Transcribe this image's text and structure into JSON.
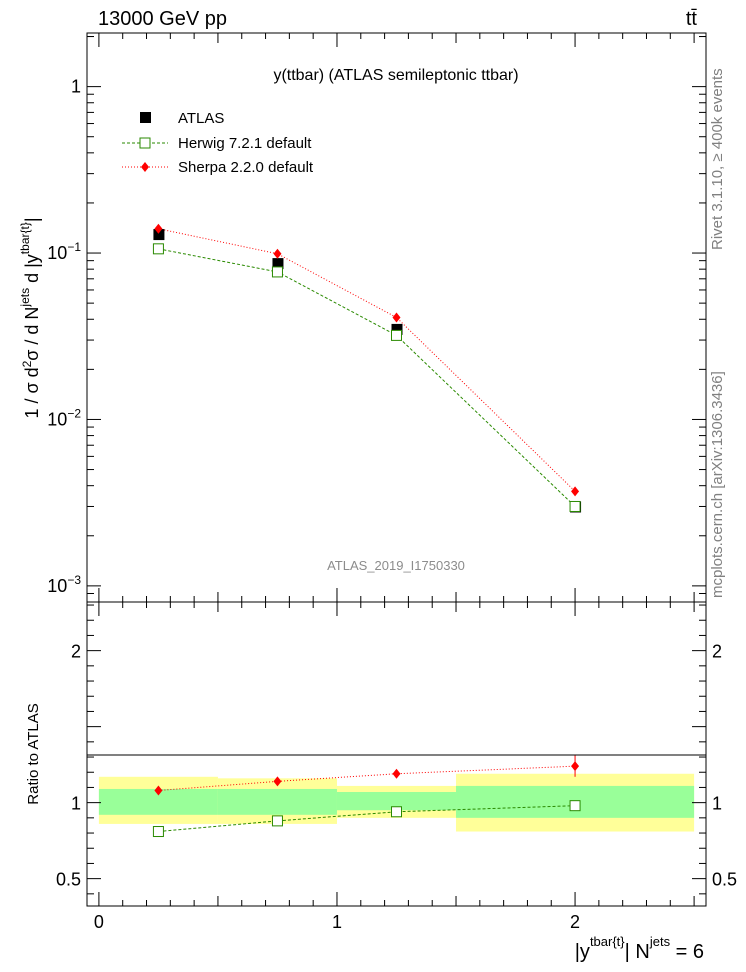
{
  "header": {
    "energy_label": "13000 GeV pp",
    "process_label": "tt̄"
  },
  "side_labels": {
    "rivet": "Rivet 3.1.10, ≥ 400k events",
    "mcplots": "mcplots.cern.ch [arXiv:1306.3436]"
  },
  "chart_data": [
    {
      "type": "scatter",
      "panel": "main",
      "title": "y(ttbar) (ATLAS semileptonic ttbar)",
      "watermark": "ATLAS_2019_I1750330",
      "ylabel": "1 / σ d²σ / d N^jets d |y^tbar{t}|",
      "yscale": "log",
      "ylim": [
        0.0008,
        2.1
      ],
      "xlim": [
        -0.05,
        2.55
      ],
      "y_ticks": [
        {
          "value": 1,
          "label": "1"
        },
        {
          "value": 0.1,
          "label": "10^-1"
        },
        {
          "value": 0.01,
          "label": "10^-2"
        },
        {
          "value": 0.001,
          "label": "10^-3"
        }
      ],
      "legend_position": "top-left",
      "bins": [
        [
          0,
          0.5
        ],
        [
          0.5,
          1
        ],
        [
          1,
          1.5
        ],
        [
          1.5,
          2.5
        ]
      ],
      "x": [
        0.25,
        0.75,
        1.25,
        2.0
      ],
      "series": [
        {
          "name": "ATLAS",
          "style": "data",
          "color": "#000000",
          "values": [
            0.13,
            0.087,
            0.035,
            0.003
          ]
        },
        {
          "name": "Herwig 7.2.1 default",
          "style": "open-square-dashed",
          "color": "#2a8a00",
          "values": [
            0.106,
            0.077,
            0.032,
            0.003
          ]
        },
        {
          "name": "Sherpa 2.2.0 default",
          "style": "diamond-dotted",
          "color": "#ff0000",
          "values": [
            0.14,
            0.099,
            0.041,
            0.0037
          ]
        }
      ]
    },
    {
      "type": "scatter",
      "panel": "ratio",
      "ylabel": "Ratio to ATLAS",
      "xlabel_main": "|y",
      "xlabel_sup": "tbar{t}",
      "xlabel_mid": "| N",
      "xlabel_sup2": "jets",
      "xlabel_end": " = 6",
      "ylim": [
        0.32,
        2.32
      ],
      "xlim": [
        -0.05,
        2.55
      ],
      "y_ticks": [
        0.5,
        1,
        2
      ],
      "y_tick_labels": [
        "0.5",
        "1",
        "2"
      ],
      "x_ticks": [
        0,
        1,
        2
      ],
      "x_tick_labels": [
        "0",
        "1",
        "2"
      ],
      "x": [
        0.25,
        0.75,
        1.25,
        2.0
      ],
      "bins": [
        [
          0,
          0.5
        ],
        [
          0.5,
          1
        ],
        [
          1,
          1.5
        ],
        [
          1.5,
          2.5
        ]
      ],
      "bands": {
        "stat_color": "#99ff99",
        "total_color": "#ffff99",
        "stat_lo": [
          0.92,
          0.92,
          0.95,
          0.9
        ],
        "stat_hi": [
          1.09,
          1.09,
          1.07,
          1.11
        ],
        "total_lo": [
          0.86,
          0.86,
          0.9,
          0.81
        ],
        "total_hi": [
          1.17,
          1.16,
          1.11,
          1.19
        ]
      },
      "series": [
        {
          "name": "Herwig 7.2.1 default",
          "color": "#2a8a00",
          "values": [
            0.81,
            0.88,
            0.94,
            0.98
          ]
        },
        {
          "name": "Sherpa 2.2.0 default",
          "color": "#ff0000",
          "values": [
            1.08,
            1.14,
            1.19,
            1.24
          ],
          "err": [
            0.0,
            0.0,
            0.0,
            0.07
          ]
        }
      ]
    }
  ]
}
